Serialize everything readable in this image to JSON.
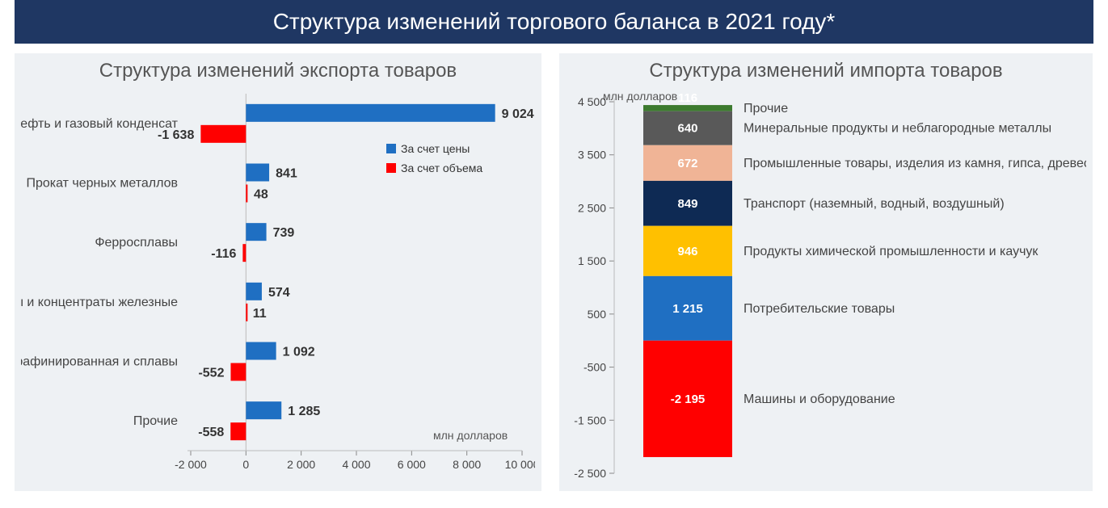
{
  "title": "Структура изменений торгового баланса в 2021 году*",
  "title_bg": "#1f3763",
  "panel_bg": "#eef1f4",
  "export_chart": {
    "title": "Структура изменений экспорта товаров",
    "type": "grouped_horizontal_bar",
    "axis_title": "млн долларов",
    "x_min": -2000,
    "x_max": 10000,
    "x_tick_step": 2000,
    "series": [
      {
        "name": "За счет цены",
        "color": "#1f6fc2"
      },
      {
        "name": "За счет объема",
        "color": "#ff0000"
      }
    ],
    "categories": [
      {
        "label": "Нефть и газовый конденсат",
        "price": 9024,
        "volume": -1638
      },
      {
        "label": "Прокат черных металлов",
        "price": 841,
        "volume": 48
      },
      {
        "label": "Ферросплавы",
        "price": 739,
        "volume": -116
      },
      {
        "label": "Руды и концентраты железные",
        "price": 574,
        "volume": 11
      },
      {
        "label": "Медь рафинированная и сплавы",
        "price": 1092,
        "volume": -552
      },
      {
        "label": "Прочие",
        "price": 1285,
        "volume": -558
      }
    ],
    "label_color": "#444444",
    "tick_color": "#888888"
  },
  "import_chart": {
    "title": "Структура изменений импорта товаров",
    "type": "stacked_waterfall_column",
    "axis_title": "млн долларов",
    "y_min": -2500,
    "y_max": 4500,
    "y_tick_step": 1000,
    "segments": [
      {
        "label": "Прочие",
        "value": 116,
        "color": "#3c7a2e"
      },
      {
        "label": "Минеральные продукты и неблагородные металлы",
        "value": 640,
        "color": "#595959"
      },
      {
        "label": "Промышленные товары, изделия из камня, гипса, древесины",
        "value": 672,
        "color": "#f0b496"
      },
      {
        "label": "Транспорт (наземный, водный, воздушный)",
        "value": 849,
        "color": "#0e2a54"
      },
      {
        "label": "Продукты химической промышленности и каучук",
        "value": 946,
        "color": "#ffc000"
      },
      {
        "label": "Потребительские товары",
        "value": 1215,
        "color": "#1f6fc2"
      },
      {
        "label": "Машины и оборудование",
        "value": -2195,
        "color": "#ff0000"
      }
    ],
    "label_color": "#444444"
  }
}
